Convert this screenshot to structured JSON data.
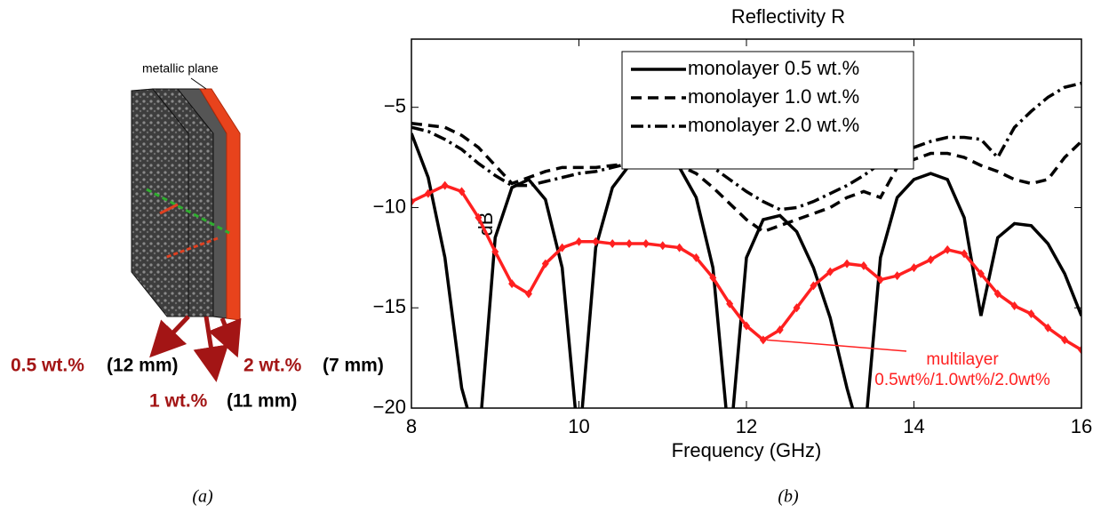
{
  "chart_data": {
    "type": "line",
    "title": "Reflectivity R",
    "xlabel": "Frequency (GHz)",
    "ylabel": "dB",
    "x": [
      8.0,
      8.2,
      8.4,
      8.6,
      8.8,
      9.0,
      9.2,
      9.4,
      9.6,
      9.8,
      10.0,
      10.2,
      10.4,
      10.6,
      10.8,
      11.0,
      11.2,
      11.4,
      11.6,
      11.8,
      12.0,
      12.2,
      12.4,
      12.6,
      12.8,
      13.0,
      13.2,
      13.4,
      13.6,
      13.8,
      14.0,
      14.2,
      14.4,
      14.6,
      14.8,
      15.0,
      15.2,
      15.4,
      15.6,
      15.8,
      16.0
    ],
    "series": [
      {
        "name": "monolayer 0.5 wt.%",
        "color": "#000000",
        "linestyle": "solid",
        "values": [
          -6.3,
          -8.5,
          -12.5,
          -19,
          -22,
          -11.5,
          -9.0,
          -8.6,
          -9.6,
          -13,
          -22,
          -12,
          -9.0,
          -7.9,
          -7.4,
          -7.4,
          -8.0,
          -9.5,
          -13,
          -22,
          -12.5,
          -10.6,
          -10.4,
          -11.2,
          -13,
          -15.5,
          -19,
          -22,
          -12.5,
          -9.5,
          -8.6,
          -8.3,
          -8.6,
          -10.5,
          -15.4,
          -11.5,
          -10.8,
          -10.9,
          -11.8,
          -13.3,
          -15.4
        ]
      },
      {
        "name": "monolayer 1.0 wt.%",
        "color": "#000000",
        "linestyle": "dashed",
        "values": [
          -5.8,
          -5.9,
          -6.0,
          -6.4,
          -7.0,
          -7.9,
          -8.8,
          -8.5,
          -8.2,
          -8.0,
          -8.0,
          -8.0,
          -7.9,
          -7.8,
          -7.7,
          -7.6,
          -7.9,
          -8.3,
          -9.0,
          -9.8,
          -10.6,
          -11.2,
          -10.9,
          -10.6,
          -10.3,
          -10.0,
          -9.5,
          -9.2,
          -9.5,
          -8.0,
          -7.6,
          -7.3,
          -7.3,
          -7.5,
          -7.9,
          -8.2,
          -8.6,
          -8.8,
          -8.6,
          -7.5,
          -6.7
        ]
      },
      {
        "name": "monolayer 2.0 wt.%",
        "color": "#000000",
        "linestyle": "dashdot",
        "values": [
          -6.0,
          -6.2,
          -6.6,
          -7.1,
          -7.8,
          -8.4,
          -8.9,
          -8.9,
          -8.7,
          -8.5,
          -8.3,
          -8.2,
          -8.0,
          -7.8,
          -7.5,
          -7.4,
          -7.4,
          -7.6,
          -8.0,
          -8.6,
          -9.2,
          -9.7,
          -10.1,
          -10.0,
          -9.7,
          -9.3,
          -8.9,
          -8.4,
          -7.8,
          -7.4,
          -7.0,
          -6.7,
          -6.5,
          -6.5,
          -6.6,
          -7.5,
          -6.0,
          -5.2,
          -4.5,
          -4.0,
          -3.8
        ]
      },
      {
        "name": "multilayer",
        "color": "#ff2020",
        "linestyle": "solid",
        "marker": "diamond",
        "values": [
          -9.7,
          -9.3,
          -8.9,
          -9.2,
          -10.5,
          -12.2,
          -13.8,
          -14.3,
          -12.8,
          -12.0,
          -11.7,
          -11.7,
          -11.8,
          -11.8,
          -11.8,
          -11.9,
          -12.0,
          -12.5,
          -13.5,
          -14.8,
          -15.9,
          -16.6,
          -16.1,
          -15.0,
          -13.9,
          -13.2,
          -12.8,
          -12.9,
          -13.6,
          -13.4,
          -13.0,
          -12.6,
          -12.1,
          -12.3,
          -13.3,
          -14.3,
          -14.9,
          -15.3,
          -16.0,
          -16.6,
          -17.1
        ]
      }
    ],
    "legend_series": [
      0,
      1,
      2
    ],
    "legend": "upper left",
    "annotation": [
      "0.5wt%/1.0wt%/2.0wt%"
    ],
    "xlim": [
      8,
      16
    ],
    "xticks": [
      8,
      10,
      12,
      14,
      16
    ],
    "ylim": [
      -20,
      -1.6
    ],
    "yticks": [
      {
        "value": -5,
        "label": "−5"
      },
      {
        "value": -10,
        "label": "−10"
      },
      {
        "value": -15,
        "label": "−15"
      },
      {
        "value": -20,
        "label": "−20"
      }
    ]
  },
  "diagram": {
    "plane_label": "metallic plane",
    "layers": [
      {
        "conc": "0.5 wt.%",
        "thickness": "(12 mm)"
      },
      {
        "conc": "1 wt.%",
        "thickness": "(11 mm)"
      },
      {
        "conc": "2 wt.%",
        "thickness": "(7 mm)"
      }
    ]
  },
  "captions": [
    "(a)",
    "(b)"
  ]
}
